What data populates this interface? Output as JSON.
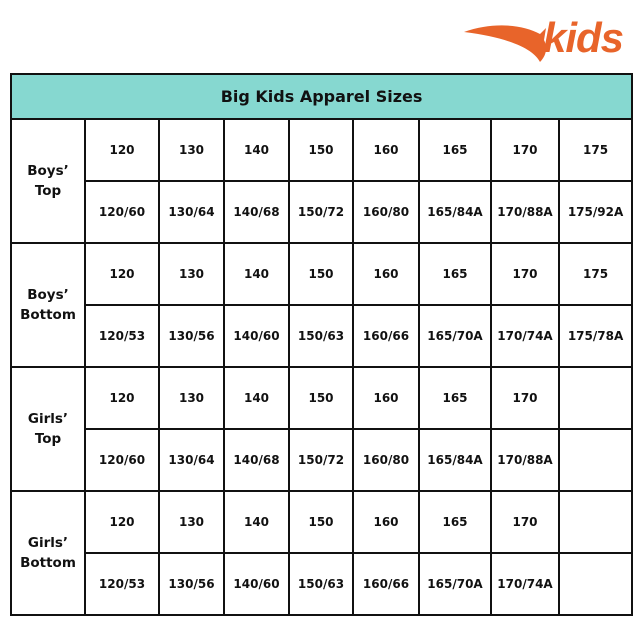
{
  "logo": {
    "text": "kids",
    "color": "#e8642a"
  },
  "header_color": "#86d8d0",
  "title": "Big Kids Apparel Sizes",
  "groups": [
    {
      "label_line1": "Boys’",
      "label_line2": "Top",
      "sizes": [
        "120",
        "130",
        "140",
        "150",
        "160",
        "165",
        "170",
        "175"
      ],
      "codes": [
        "120/60",
        "130/64",
        "140/68",
        "150/72",
        "160/80",
        "165/84A",
        "170/88A",
        "175/92A"
      ]
    },
    {
      "label_line1": "Boys’",
      "label_line2": "Bottom",
      "sizes": [
        "120",
        "130",
        "140",
        "150",
        "160",
        "165",
        "170",
        "175"
      ],
      "codes": [
        "120/53",
        "130/56",
        "140/60",
        "150/63",
        "160/66",
        "165/70A",
        "170/74A",
        "175/78A"
      ]
    },
    {
      "label_line1": "Girls’",
      "label_line2": "Top",
      "sizes": [
        "120",
        "130",
        "140",
        "150",
        "160",
        "165",
        "170",
        ""
      ],
      "codes": [
        "120/60",
        "130/64",
        "140/68",
        "150/72",
        "160/80",
        "165/84A",
        "170/88A",
        ""
      ]
    },
    {
      "label_line1": "Girls’",
      "label_line2": "Bottom",
      "sizes": [
        "120",
        "130",
        "140",
        "150",
        "160",
        "165",
        "170",
        ""
      ],
      "codes": [
        "120/53",
        "130/56",
        "140/60",
        "150/63",
        "160/66",
        "165/70A",
        "170/74A",
        ""
      ]
    }
  ]
}
